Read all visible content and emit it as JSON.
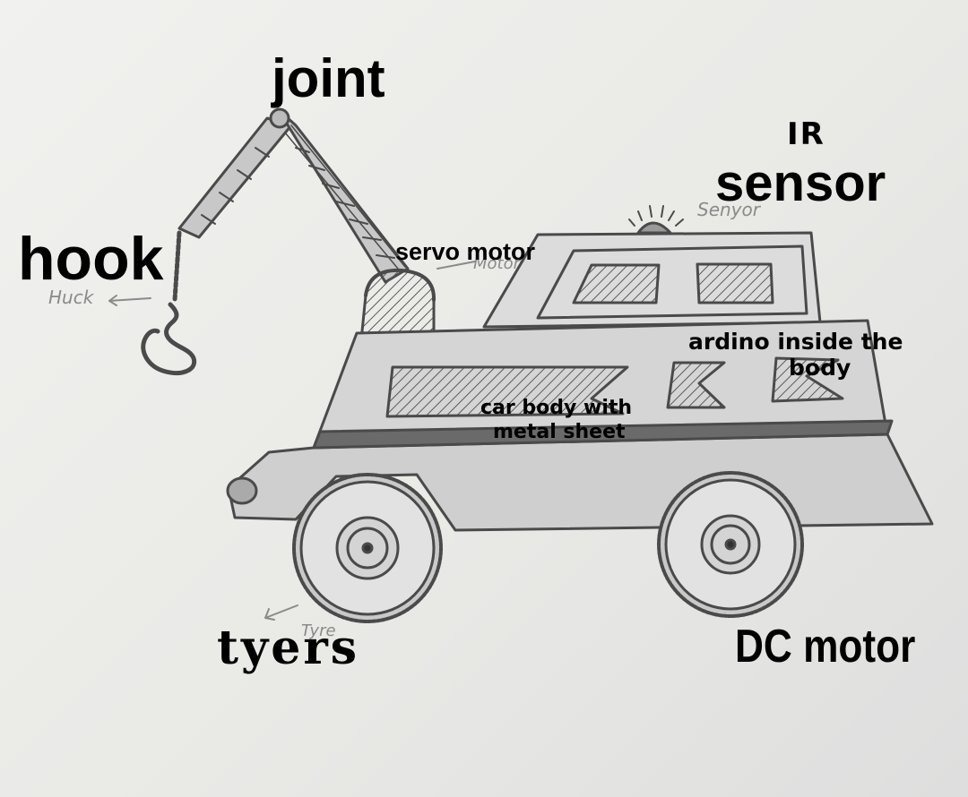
{
  "labels": {
    "joint": "joint",
    "ir_sensor_line1": "IR",
    "ir_sensor_line2": "sensor",
    "hook": "hook",
    "servo_motor": "servo motor",
    "arduino_line1": "ardino inside the",
    "arduino_line2": "body",
    "car_body_line1": "car body with",
    "car_body_line2": "metal sheet",
    "tyres": "tyers",
    "dc_motor": "DC motor"
  },
  "pencil_notes": {
    "hook": "Huck",
    "sensor": "Senyor",
    "motor": "Motor",
    "tyre": "Tyre"
  },
  "colors": {
    "paper": "#ececea",
    "pencil": "#4a4a4a",
    "shade": "#8c8c8c",
    "label": "#000000"
  }
}
